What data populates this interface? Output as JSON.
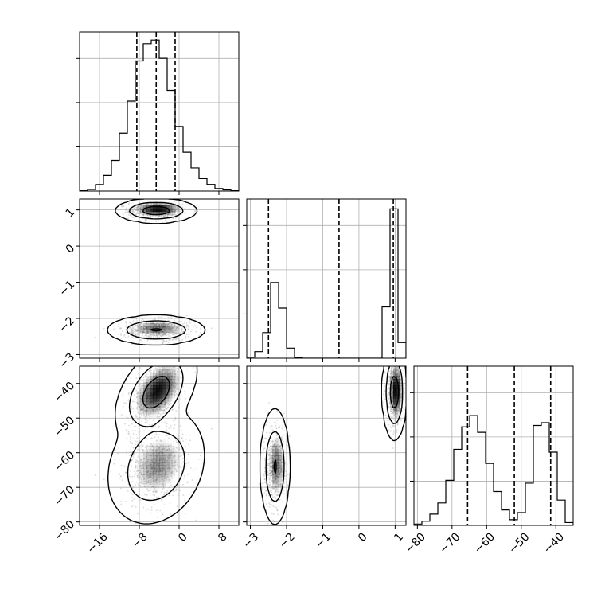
{
  "chart_data": {
    "type": "corner",
    "grid": true,
    "colors": {
      "line": "#000000",
      "grid": "#b0b0b0",
      "density": "#000000",
      "point": "#999999"
    },
    "params": [
      {
        "range": [
          -20,
          12
        ],
        "ticks": [
          -16,
          -8,
          0,
          8
        ]
      },
      {
        "range": [
          -3.1,
          1.3
        ],
        "ticks": [
          -3,
          -2,
          -1,
          0,
          1
        ]
      },
      {
        "range": [
          -81,
          -35
        ],
        "ticks": [
          -80,
          -70,
          -60,
          -50,
          -40
        ]
      }
    ],
    "quantiles": [
      [
        -8.5,
        -4.6,
        -0.8
      ],
      [
        -2.5,
        -0.55,
        0.95
      ],
      [
        -65.5,
        -52,
        -41.5
      ]
    ],
    "hist1d": [
      {
        "bins": [
          -20,
          -18.4,
          -16.8,
          -15.2,
          -13.6,
          -12,
          -10.4,
          -8.8,
          -7.2,
          -5.6,
          -4,
          -2.4,
          -0.8,
          0.8,
          2.4,
          4,
          5.6,
          7.2,
          8.8,
          10.4,
          12
        ],
        "counts": [
          0.2,
          1.1,
          4.4,
          10.6,
          20.8,
          39.3,
          61.0,
          88.3,
          100,
          102.5,
          90.1,
          68.3,
          43.8,
          26.4,
          15.7,
          8.4,
          4.5,
          1.7,
          0.8,
          0.2
        ],
        "ymax": 108
      },
      {
        "bins": [
          -3.1,
          -2.88,
          -2.66,
          -2.44,
          -2.22,
          -2.0,
          -1.78,
          -1.56,
          -1.34,
          -1.12,
          -0.9,
          -0.68,
          -0.46,
          -0.24,
          -0.02,
          0.2,
          0.42,
          0.64,
          0.86,
          1.08,
          1.3
        ],
        "counts": [
          0.8,
          5.0,
          19.3,
          57.1,
          37.8,
          7.6,
          0.4,
          0,
          0,
          0,
          0,
          0,
          0,
          0,
          0,
          0,
          0,
          38.7,
          112.6,
          11.8
        ],
        "ymax": 120
      },
      {
        "bins": [
          -81,
          -78.7,
          -76.4,
          -74.1,
          -71.8,
          -69.5,
          -67.2,
          -64.9,
          -62.6,
          -60.3,
          -58,
          -55.7,
          -53.4,
          -51.1,
          -48.8,
          -46.5,
          -44.2,
          -41.9,
          -39.6,
          -37.3,
          -35
        ],
        "counts": [
          0.8,
          2.5,
          6.7,
          13.4,
          26.9,
          45.4,
          58.8,
          65.5,
          55.5,
          37.0,
          20.2,
          9.2,
          3.4,
          7.6,
          25.2,
          59.6,
          61.3,
          43.7,
          15.1,
          1.7
        ],
        "ymax": 95
      }
    ],
    "clusters": [
      {
        "mean": [
          -4.6,
          0.98,
          -42.5
        ],
        "sd": [
          2.7,
          0.11,
          4.6
        ],
        "rho_xz": 0.45,
        "weight": 0.5
      },
      {
        "mean": [
          -4.6,
          -2.32,
          -64.0
        ],
        "sd": [
          3.4,
          0.14,
          5.8
        ],
        "rho_xz": 0.2,
        "weight": 0.5
      }
    ],
    "levels": [
      0.39,
      0.86,
      0.99
    ]
  }
}
